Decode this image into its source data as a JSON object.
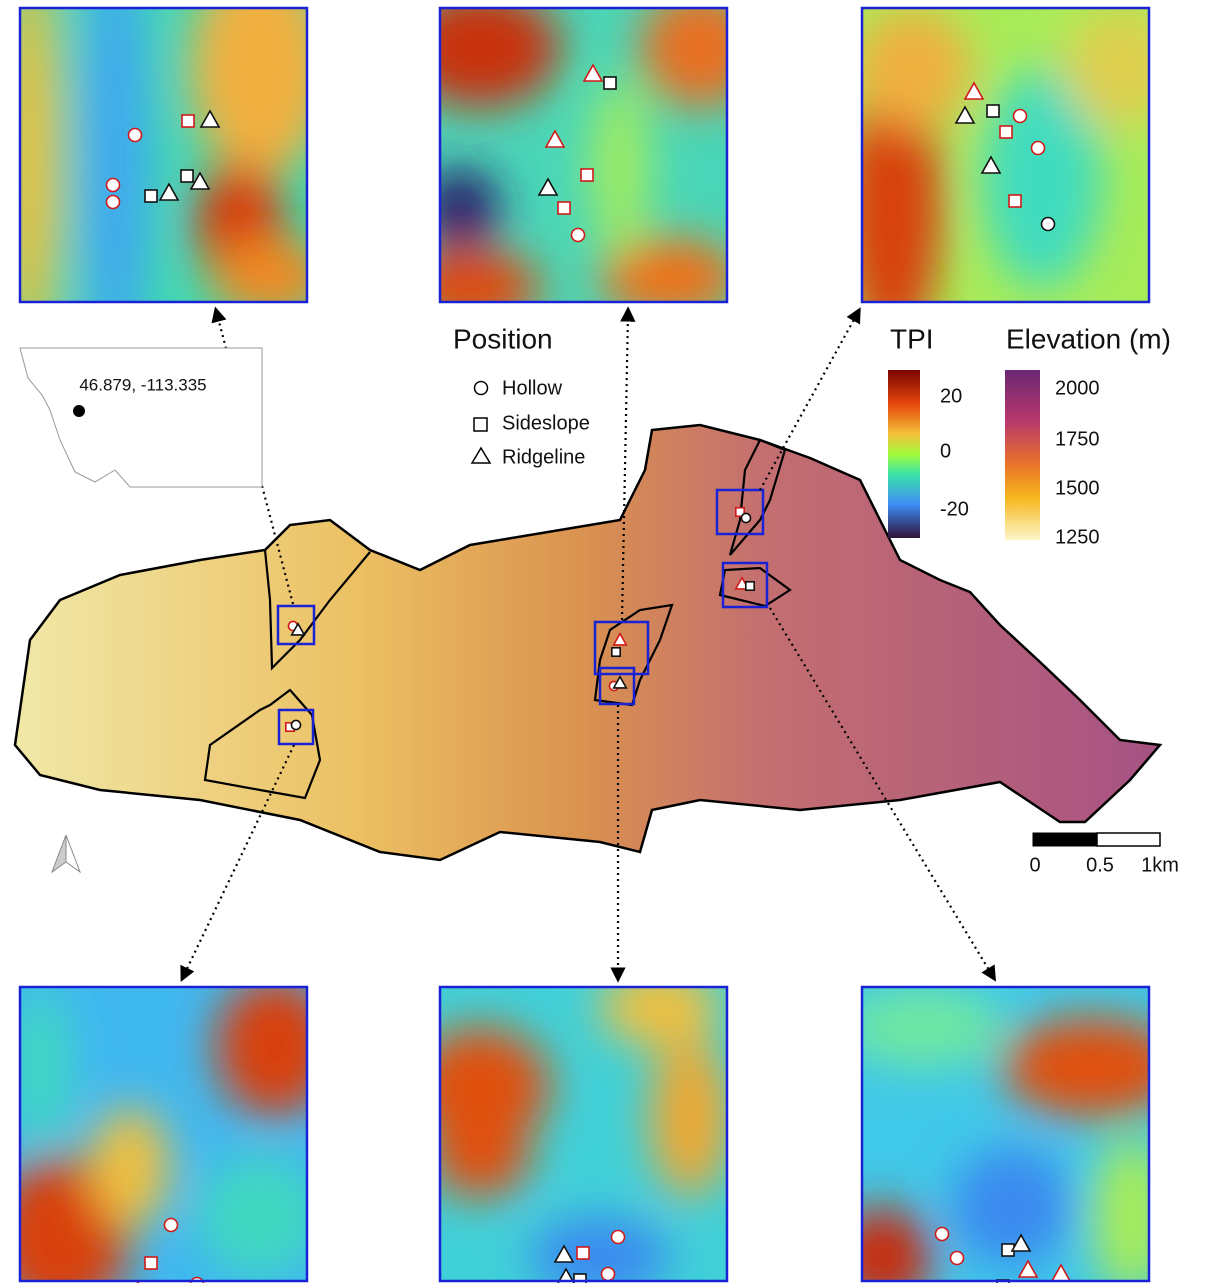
{
  "location_label": "46.879, -113.335",
  "legend": {
    "title": "Position",
    "items": [
      "Hollow",
      "Sideslope",
      "Ridgeline"
    ]
  },
  "tpi": {
    "title": "TPI",
    "ticks": [
      20,
      0,
      -20
    ]
  },
  "elevation": {
    "title": "Elevation (m)",
    "ticks": [
      2000,
      1750,
      1500,
      1250
    ]
  },
  "scale_bar": {
    "labels": [
      "0",
      "0.5",
      "1km"
    ]
  }
}
